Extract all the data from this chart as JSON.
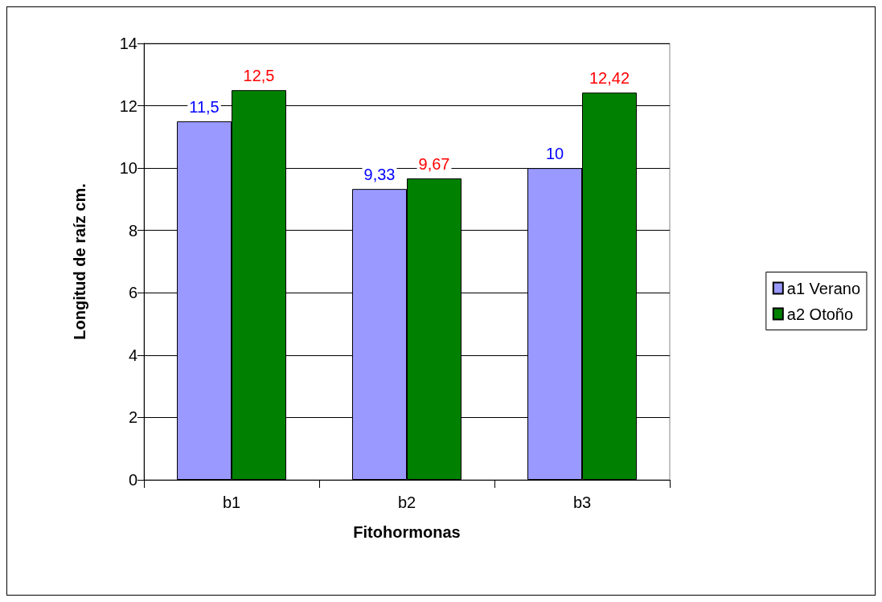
{
  "chart_data": {
    "type": "bar",
    "xlabel": "Fitohormonas",
    "ylabel": "Longitud de raíz cm.",
    "categories": [
      "b1",
      "b2",
      "b3"
    ],
    "series": [
      {
        "name": "a1 Verano",
        "color": "#9999ff",
        "values": [
          11.5,
          9.33,
          10
        ],
        "value_labels": [
          "11,5",
          "9,33",
          "10"
        ]
      },
      {
        "name": "a2 Otoño",
        "color": "#008000",
        "values": [
          12.5,
          9.67,
          12.42
        ],
        "value_labels": [
          "12,5",
          "9,67",
          "12,42"
        ]
      }
    ],
    "ylim": [
      0,
      14
    ],
    "yticks": [
      0,
      2,
      4,
      6,
      8,
      10,
      12,
      14
    ],
    "grid": "y",
    "legend": "right"
  }
}
